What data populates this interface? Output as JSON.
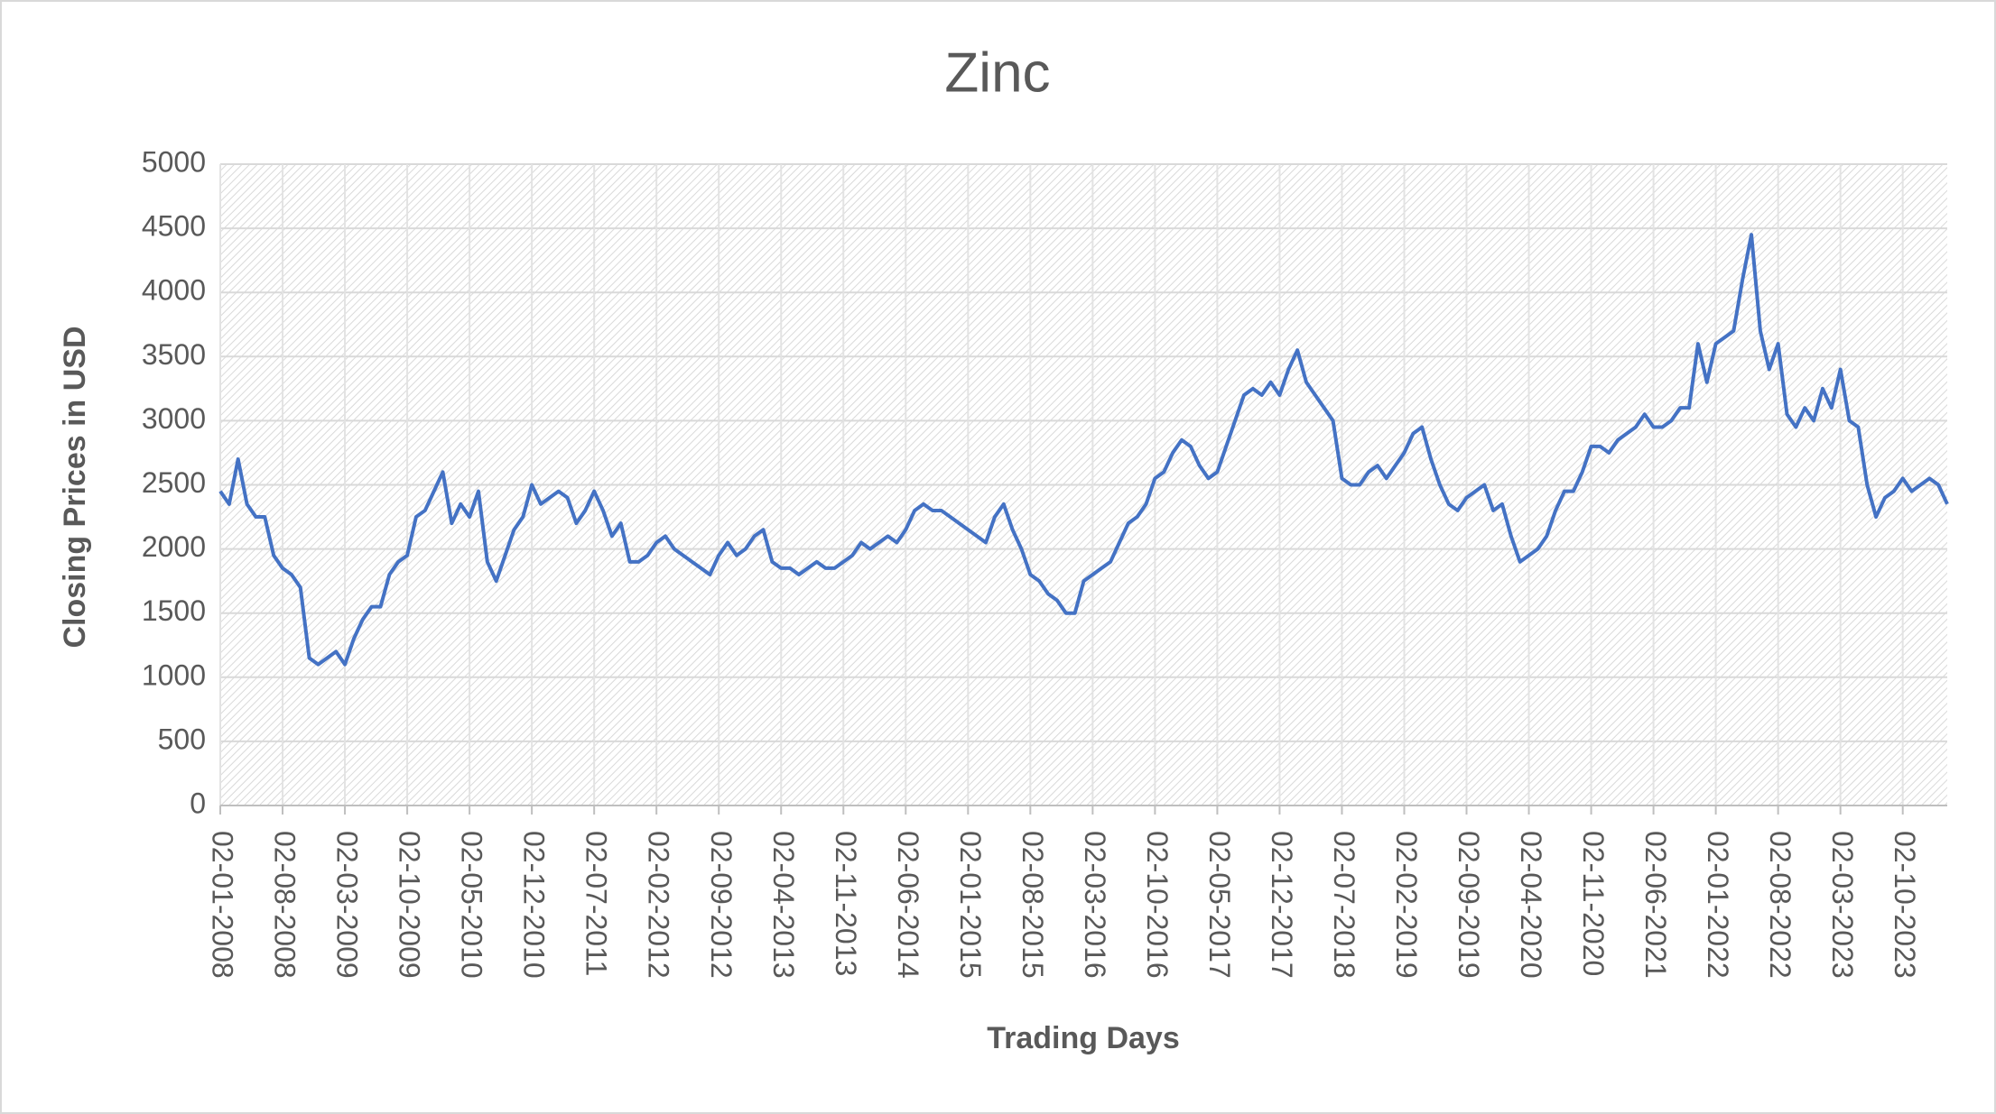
{
  "chart_data": {
    "type": "line",
    "title": "Zinc",
    "x_label": "Trading Days",
    "y_label": "Closing Prices in USD",
    "color": "#4472c4",
    "grid": true,
    "ylim": [
      0,
      5000
    ],
    "yticks": [
      0,
      500,
      1000,
      1500,
      2000,
      2500,
      3000,
      3500,
      4000,
      4500,
      5000
    ],
    "categories": [
      "02-01-2008",
      null,
      null,
      null,
      null,
      null,
      null,
      "02-08-2008",
      null,
      null,
      null,
      null,
      null,
      null,
      "02-03-2009",
      null,
      null,
      null,
      null,
      null,
      null,
      "02-10-2009",
      null,
      null,
      null,
      null,
      null,
      null,
      "02-05-2010",
      null,
      null,
      null,
      null,
      null,
      null,
      "02-12-2010",
      null,
      null,
      null,
      null,
      null,
      null,
      "02-07-2011",
      null,
      null,
      null,
      null,
      null,
      null,
      "02-02-2012",
      null,
      null,
      null,
      null,
      null,
      null,
      "02-09-2012",
      null,
      null,
      null,
      null,
      null,
      null,
      "02-04-2013",
      null,
      null,
      null,
      null,
      null,
      null,
      "02-11-2013",
      null,
      null,
      null,
      null,
      null,
      null,
      "02-06-2014",
      null,
      null,
      null,
      null,
      null,
      null,
      "02-01-2015",
      null,
      null,
      null,
      null,
      null,
      null,
      "02-08-2015",
      null,
      null,
      null,
      null,
      null,
      null,
      "02-03-2016",
      null,
      null,
      null,
      null,
      null,
      null,
      "02-10-2016",
      null,
      null,
      null,
      null,
      null,
      null,
      "02-05-2017",
      null,
      null,
      null,
      null,
      null,
      null,
      "02-12-2017",
      null,
      null,
      null,
      null,
      null,
      null,
      "02-07-2018",
      null,
      null,
      null,
      null,
      null,
      null,
      "02-02-2019",
      null,
      null,
      null,
      null,
      null,
      null,
      "02-09-2019",
      null,
      null,
      null,
      null,
      null,
      null,
      "02-04-2020",
      null,
      null,
      null,
      null,
      null,
      null,
      "02-11-2020",
      null,
      null,
      null,
      null,
      null,
      null,
      "02-06-2021",
      null,
      null,
      null,
      null,
      null,
      null,
      "02-01-2022",
      null,
      null,
      null,
      null,
      null,
      null,
      "02-08-2022",
      null,
      null,
      null,
      null,
      null,
      null,
      "02-03-2023",
      null,
      null,
      null,
      null,
      null,
      null,
      "02-10-2023",
      null,
      null,
      null,
      null,
      null
    ],
    "values": [
      2450,
      2350,
      2700,
      2350,
      2250,
      2250,
      1950,
      1850,
      1800,
      1700,
      1150,
      1100,
      1150,
      1200,
      1100,
      1300,
      1450,
      1550,
      1550,
      1800,
      1900,
      1950,
      2250,
      2300,
      2450,
      2600,
      2200,
      2350,
      2250,
      2450,
      1900,
      1750,
      1950,
      2150,
      2250,
      2500,
      2350,
      2400,
      2450,
      2400,
      2200,
      2300,
      2450,
      2300,
      2100,
      2200,
      1900,
      1900,
      1950,
      2050,
      2100,
      2000,
      1950,
      1900,
      1850,
      1800,
      1950,
      2050,
      1950,
      2000,
      2100,
      2150,
      1900,
      1850,
      1850,
      1800,
      1850,
      1900,
      1850,
      1850,
      1900,
      1950,
      2050,
      2000,
      2050,
      2100,
      2050,
      2150,
      2300,
      2350,
      2300,
      2300,
      2250,
      2200,
      2150,
      2100,
      2050,
      2250,
      2350,
      2150,
      2000,
      1800,
      1750,
      1650,
      1600,
      1500,
      1500,
      1750,
      1800,
      1850,
      1900,
      2050,
      2200,
      2250,
      2350,
      2550,
      2600,
      2750,
      2850,
      2800,
      2650,
      2550,
      2600,
      2800,
      3000,
      3200,
      3250,
      3200,
      3300,
      3200,
      3400,
      3550,
      3300,
      3200,
      3100,
      3000,
      2550,
      2500,
      2500,
      2600,
      2650,
      2550,
      2650,
      2750,
      2900,
      2950,
      2700,
      2500,
      2350,
      2300,
      2400,
      2450,
      2500,
      2300,
      2350,
      2100,
      1900,
      1950,
      2000,
      2100,
      2300,
      2450,
      2450,
      2600,
      2800,
      2800,
      2750,
      2850,
      2900,
      2950,
      3050,
      2950,
      2950,
      3000,
      3100,
      3100,
      3600,
      3300,
      3600,
      3650,
      3700,
      4100,
      4450,
      3700,
      3400,
      3600,
      3050,
      2950,
      3100,
      3000,
      3250,
      3100,
      3400,
      3000,
      2950,
      2500,
      2250,
      2400,
      2450,
      2550,
      2450,
      2500,
      2550,
      2500,
      2350
    ]
  }
}
